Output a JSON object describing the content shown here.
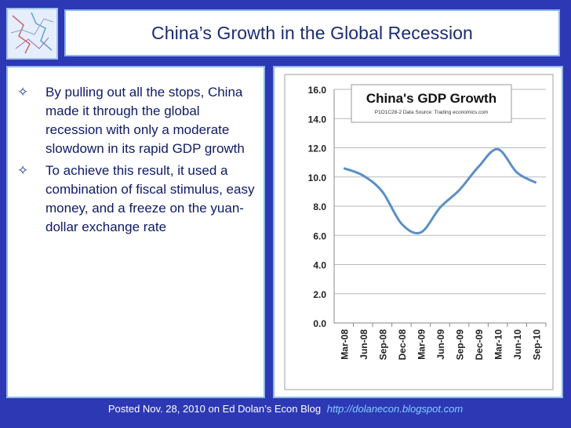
{
  "slide": {
    "title": "China’s Growth in the Global Recession"
  },
  "bullets": [
    "By pulling out all the stops, China made it through the global recession with only a moderate slowdown in its rapid GDP growth",
    "To achieve this result, it used a combination of fiscal stimulus, easy money, and a freeze on the yuan-dollar exchange rate"
  ],
  "bullet_icon": "hollow-diamond-star-icon",
  "footer": {
    "text": "Posted Nov. 28, 2010 on Ed Dolan’s Econ Blog",
    "link": "http://dolanecon.blogspot.com"
  },
  "colors": {
    "background": "#2d38b4",
    "line": "#5b8ec4",
    "title": "#1a2c72"
  },
  "chart_data": {
    "type": "line",
    "title": "China's GDP Growth",
    "subtitle": "P1O1C28-2 Data Source: Trading economics.com",
    "x": [
      "Mar-08",
      "Jun-08",
      "Sep-08",
      "Dec-08",
      "Mar-09",
      "Jun-09",
      "Sep-09",
      "Dec-09",
      "Mar-10",
      "Jun-10",
      "Sep-10"
    ],
    "y_ticks": [
      "0.0",
      "2.0",
      "4.0",
      "6.0",
      "8.0",
      "10.0",
      "12.0",
      "14.0",
      "16.0"
    ],
    "ylim": [
      0,
      16
    ],
    "series": [
      {
        "values": [
          10.6,
          10.1,
          9.0,
          6.8,
          6.2,
          7.9,
          9.1,
          10.7,
          11.9,
          10.3,
          9.6
        ]
      }
    ],
    "grid": true,
    "legend": "none"
  }
}
